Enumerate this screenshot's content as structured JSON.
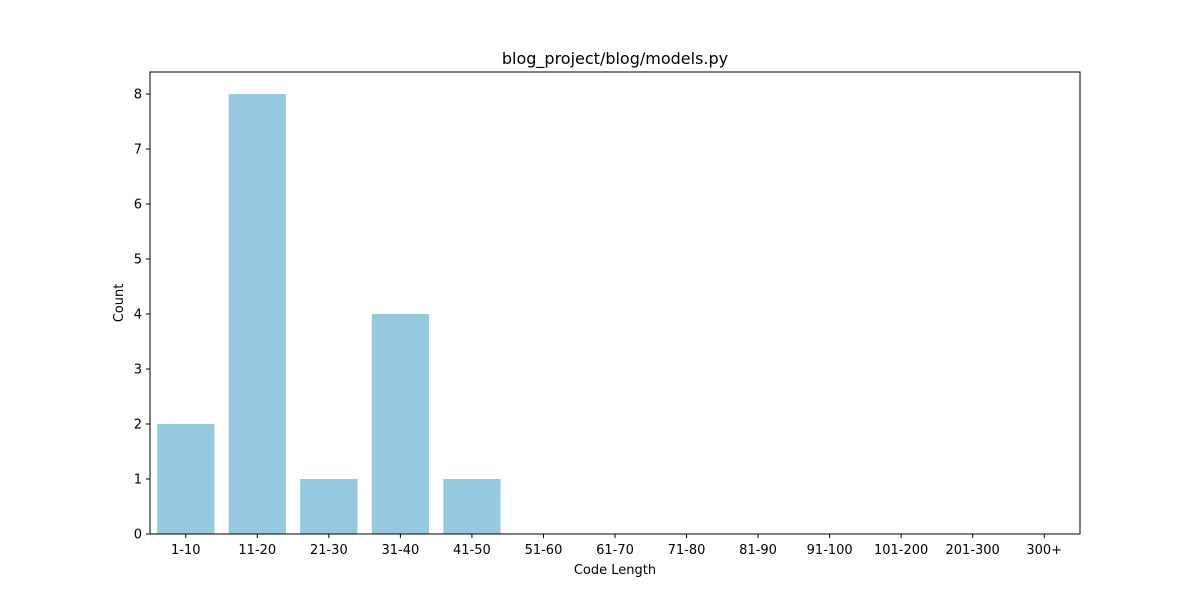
{
  "chart_data": {
    "type": "bar",
    "title": "blog_project/blog/models.py",
    "xlabel": "Code Length",
    "ylabel": "Count",
    "categories": [
      "1-10",
      "11-20",
      "21-30",
      "31-40",
      "41-50",
      "51-60",
      "61-70",
      "71-80",
      "81-90",
      "91-100",
      "101-200",
      "201-300",
      "300+"
    ],
    "values": [
      2,
      8,
      1,
      4,
      1,
      0,
      0,
      0,
      0,
      0,
      0,
      0,
      0
    ],
    "ylim": [
      0,
      8.4
    ],
    "yticks": [
      "0",
      "1",
      "2",
      "3",
      "4",
      "5",
      "6",
      "7",
      "8"
    ],
    "bar_color": "#95c9df",
    "grid": false,
    "legend": "none"
  }
}
